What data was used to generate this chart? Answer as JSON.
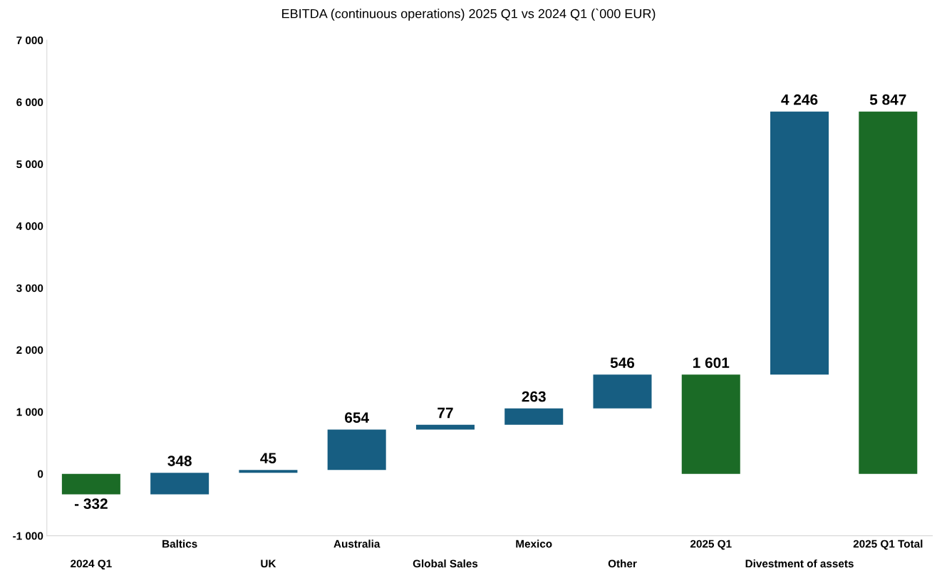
{
  "chart_data": {
    "type": "bar",
    "title": "EBITDA (continuous operations) 2025 Q1 vs 2024 Q1 (`000 EUR)",
    "categories": [
      "2024 Q1",
      "Baltics",
      "UK",
      "Australia",
      "Global Sales",
      "Mexico",
      "Other",
      "2025 Q1",
      "Divestment of assets",
      "2025 Q1 Total"
    ],
    "values": [
      -332,
      348,
      45,
      654,
      77,
      263,
      546,
      1601,
      4246,
      5847
    ],
    "base": [
      0,
      -332,
      16,
      61,
      715,
      792,
      1055,
      0,
      1601,
      0
    ],
    "colors": [
      "#1b6b26",
      "#175e82",
      "#175e82",
      "#175e82",
      "#175e82",
      "#175e82",
      "#175e82",
      "#1b6b26",
      "#175e82",
      "#1b6b26"
    ],
    "value_labels": [
      "- 332",
      "348",
      "45",
      "654",
      "77",
      "263",
      "546",
      "1 601",
      "4 246",
      "5 847"
    ],
    "ylim": [
      -1000,
      7000
    ],
    "yticks": [
      {
        "value": -1000,
        "label": "-1 000"
      },
      0,
      {
        "value": 1000,
        "label": "1 000"
      },
      {
        "value": 2000,
        "label": "2 000"
      },
      {
        "value": 3000,
        "label": "3 000"
      },
      {
        "value": 4000,
        "label": "4 000"
      },
      {
        "value": 5000,
        "label": "5 000"
      },
      {
        "value": 6000,
        "label": "6 000"
      },
      {
        "value": 7000,
        "label": "7 000"
      }
    ],
    "grid": false,
    "legend": false
  }
}
